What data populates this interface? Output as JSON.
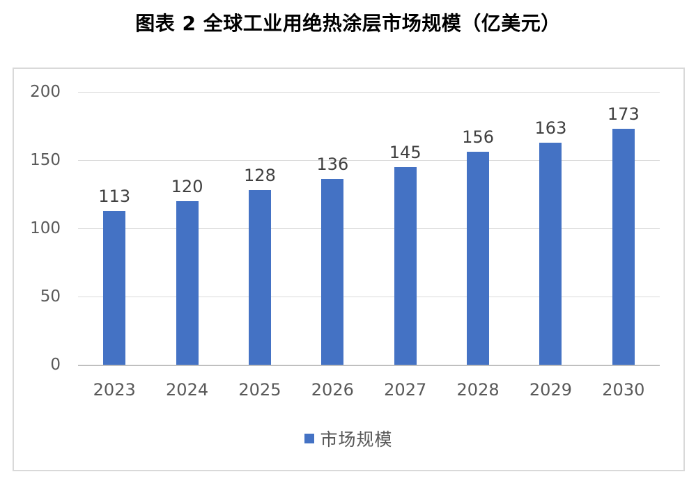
{
  "chart_data": {
    "type": "bar",
    "title": "图表 2 全球工业用绝热涂层市场规模（亿美元）",
    "categories": [
      "2023",
      "2024",
      "2025",
      "2026",
      "2027",
      "2028",
      "2029",
      "2030"
    ],
    "series": [
      {
        "name": "市场规模",
        "values": [
          113,
          120,
          128,
          136,
          145,
          156,
          163,
          173
        ]
      }
    ],
    "values": [
      113,
      120,
      128,
      136,
      145,
      156,
      163,
      173
    ],
    "ylim": [
      0,
      200
    ],
    "yticks": [
      0,
      50,
      100,
      150,
      200
    ],
    "grid": true,
    "legend_position": "bottom",
    "colors": {
      "bar": "#4472C4",
      "gridline": "#d9d9d9",
      "axis_line": "#bfbfbf",
      "tick_label": "#595959",
      "value_label": "#404040",
      "legend_text": "#595959",
      "frame_border": "#d9d9d9",
      "title": "#000000"
    }
  }
}
